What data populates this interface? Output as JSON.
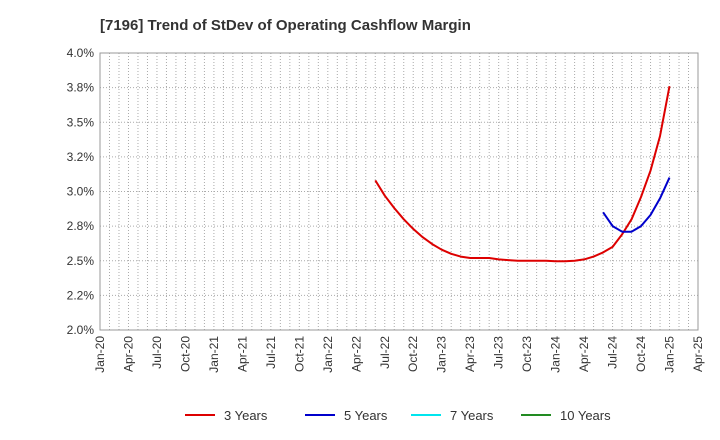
{
  "chart_data": {
    "type": "line",
    "title": "[7196]  Trend of StDev of Operating Cashflow Margin",
    "xlabel": "",
    "ylabel": "",
    "ylim": [
      2.0,
      4.0
    ],
    "y_ticks": [
      "2.0%",
      "2.2%",
      "2.5%",
      "2.8%",
      "3.0%",
      "3.2%",
      "3.5%",
      "3.8%",
      "4.0%"
    ],
    "x_ticks": [
      "Jan-20",
      "Apr-20",
      "Jul-20",
      "Oct-20",
      "Jan-21",
      "Apr-21",
      "Jul-21",
      "Oct-21",
      "Jan-22",
      "Apr-22",
      "Jul-22",
      "Oct-22",
      "Jan-23",
      "Apr-23",
      "Jul-23",
      "Oct-23",
      "Jan-24",
      "Apr-24",
      "Jul-24",
      "Oct-24",
      "Jan-25",
      "Apr-25"
    ],
    "grid": true,
    "legend_position": "bottom",
    "series": [
      {
        "name": "3 Years",
        "color": "#dd0000",
        "points": [
          [
            "Jun-22",
            3.08
          ],
          [
            "Jul-22",
            2.97
          ],
          [
            "Aug-22",
            2.88
          ],
          [
            "Sep-22",
            2.8
          ],
          [
            "Oct-22",
            2.73
          ],
          [
            "Nov-22",
            2.67
          ],
          [
            "Dec-22",
            2.62
          ],
          [
            "Jan-23",
            2.58
          ],
          [
            "Feb-23",
            2.55
          ],
          [
            "Mar-23",
            2.53
          ],
          [
            "Apr-23",
            2.52
          ],
          [
            "May-23",
            2.52
          ],
          [
            "Jun-23",
            2.52
          ],
          [
            "Jul-23",
            2.51
          ],
          [
            "Aug-23",
            2.505
          ],
          [
            "Sep-23",
            2.5
          ],
          [
            "Oct-23",
            2.5
          ],
          [
            "Nov-23",
            2.5
          ],
          [
            "Dec-23",
            2.5
          ],
          [
            "Jan-24",
            2.497
          ],
          [
            "Feb-24",
            2.497
          ],
          [
            "Mar-24",
            2.5
          ],
          [
            "Apr-24",
            2.51
          ],
          [
            "May-24",
            2.53
          ],
          [
            "Jun-24",
            2.56
          ],
          [
            "Jul-24",
            2.6
          ],
          [
            "Aug-24",
            2.69
          ],
          [
            "Sep-24",
            2.8
          ],
          [
            "Oct-24",
            2.96
          ],
          [
            "Nov-24",
            3.15
          ],
          [
            "Dec-24",
            3.4
          ],
          [
            "Jan-25",
            3.76
          ]
        ]
      },
      {
        "name": "5 Years",
        "color": "#0000cc",
        "points": [
          [
            "Jun-24",
            2.85
          ],
          [
            "Jul-24",
            2.75
          ],
          [
            "Aug-24",
            2.71
          ],
          [
            "Sep-24",
            2.71
          ],
          [
            "Oct-24",
            2.75
          ],
          [
            "Nov-24",
            2.83
          ],
          [
            "Dec-24",
            2.95
          ],
          [
            "Jan-25",
            3.1
          ]
        ]
      },
      {
        "name": "7 Years",
        "color": "#00e5ee",
        "points": []
      },
      {
        "name": "10 Years",
        "color": "#228b22",
        "points": []
      }
    ]
  }
}
